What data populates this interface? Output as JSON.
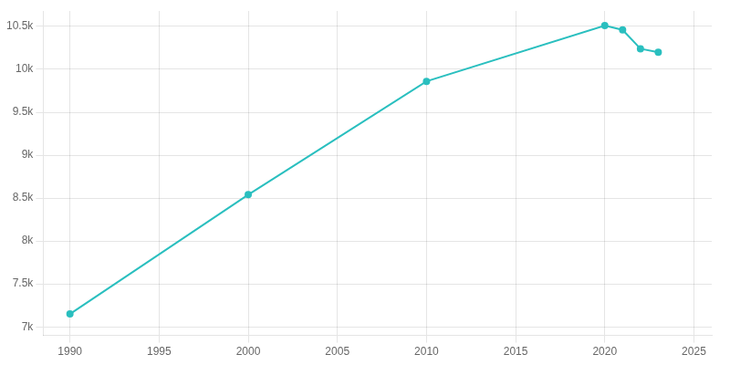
{
  "chart_data": {
    "type": "line",
    "x": [
      1990,
      2000,
      2010,
      2020,
      2021,
      2022,
      2023
    ],
    "values": [
      7150,
      8540,
      9860,
      10510,
      10460,
      10240,
      10200
    ],
    "color": "#2abfbf",
    "marker": "circle",
    "xlim": [
      1988.5,
      2026
    ],
    "xticks": [
      1990,
      1995,
      2000,
      2005,
      2010,
      2015,
      2020,
      2025
    ],
    "ylim": [
      6900,
      10680
    ],
    "yticks": [
      {
        "value": 7000,
        "label": "7k"
      },
      {
        "value": 7500,
        "label": "7.5k"
      },
      {
        "value": 8000,
        "label": "8k"
      },
      {
        "value": 8500,
        "label": "8.5k"
      },
      {
        "value": 9000,
        "label": "9k"
      },
      {
        "value": 9500,
        "label": "9.5k"
      },
      {
        "value": 10000,
        "label": "10k"
      },
      {
        "value": 10500,
        "label": "10.5k"
      }
    ],
    "grid": true
  }
}
